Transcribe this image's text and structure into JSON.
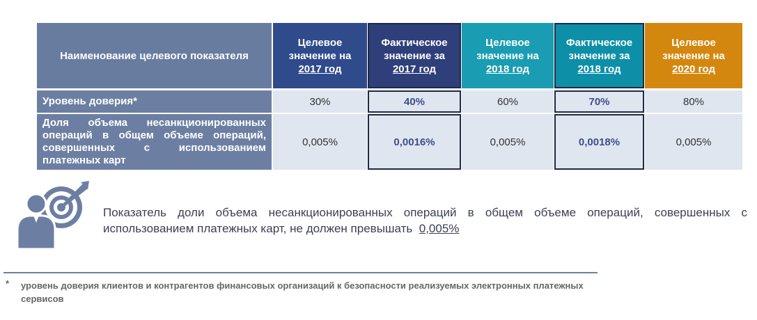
{
  "table": {
    "header": {
      "title": "Наименование целевого показателя",
      "columns": [
        {
          "text": "Целевое значение на",
          "year": "2017 год"
        },
        {
          "text": "Фактическое значение за",
          "year": "2017 год"
        },
        {
          "text": "Целевое значение на",
          "year": "2018 год"
        },
        {
          "text": "Фактическое значение за",
          "year": "2018 год"
        },
        {
          "text": "Целевое значение на",
          "year": "2020 год"
        }
      ]
    },
    "rows": [
      [
        "Уровень доверия*",
        "30%",
        "40%",
        "60%",
        "70%",
        "80%"
      ],
      [
        "Доля объема несанкционированных операций в общем объеме операций, совершенных с использованием платежных карт",
        "0,005%",
        "0,0016%",
        "0,005%",
        "0,0018%",
        "0,005%"
      ]
    ]
  },
  "note": {
    "text": "Показатель доли объема несанкционированных операций в общем объеме операций, совершенных с использованием платежных карт, не должен превышать",
    "value": "0,005%"
  },
  "footnote": {
    "mark": "*",
    "text": "уровень доверия клиентов и контрагентов финансовых организаций к безопасности реализуемых электронных платежных сервисов"
  }
}
